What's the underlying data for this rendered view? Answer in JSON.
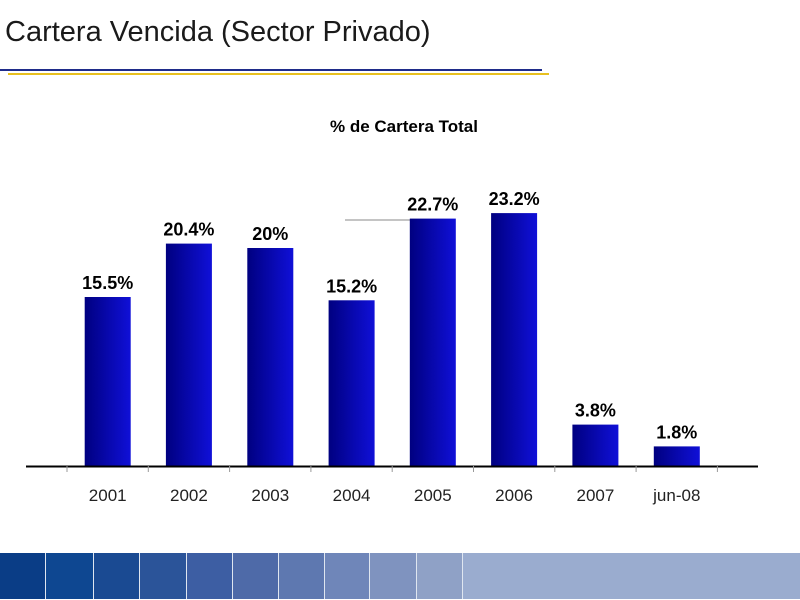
{
  "slide": {
    "title": "Cartera Vencida (Sector Privado)"
  },
  "colors": {
    "bar_dark": "#000080",
    "bar_light": "#1010d8",
    "rule_blue": "#1f2c8a",
    "rule_gold": "#e8c020",
    "footer": [
      "#0a3d86",
      "#0e4791",
      "#1a4a92",
      "#2b5499",
      "#3d5ea3",
      "#4e6aa8",
      "#5e78b0",
      "#6f86b9",
      "#7f93bf",
      "#8fa1c6",
      "#9aaccf"
    ]
  },
  "chart_data": {
    "type": "bar",
    "title": "% de Cartera Total",
    "categories": [
      "2001",
      "2002",
      "2003",
      "2004",
      "2005",
      "2006",
      "2007",
      "jun-08"
    ],
    "values": [
      15.5,
      20.4,
      20,
      15.2,
      22.7,
      23.2,
      3.8,
      1.8
    ],
    "value_labels": [
      "15.5%",
      "20.4%",
      "20%",
      "15.2%",
      "22.7%",
      "23.2%",
      "3.8%",
      "1.8%"
    ],
    "ylim": [
      0,
      25
    ],
    "grid": false,
    "legend": false
  }
}
